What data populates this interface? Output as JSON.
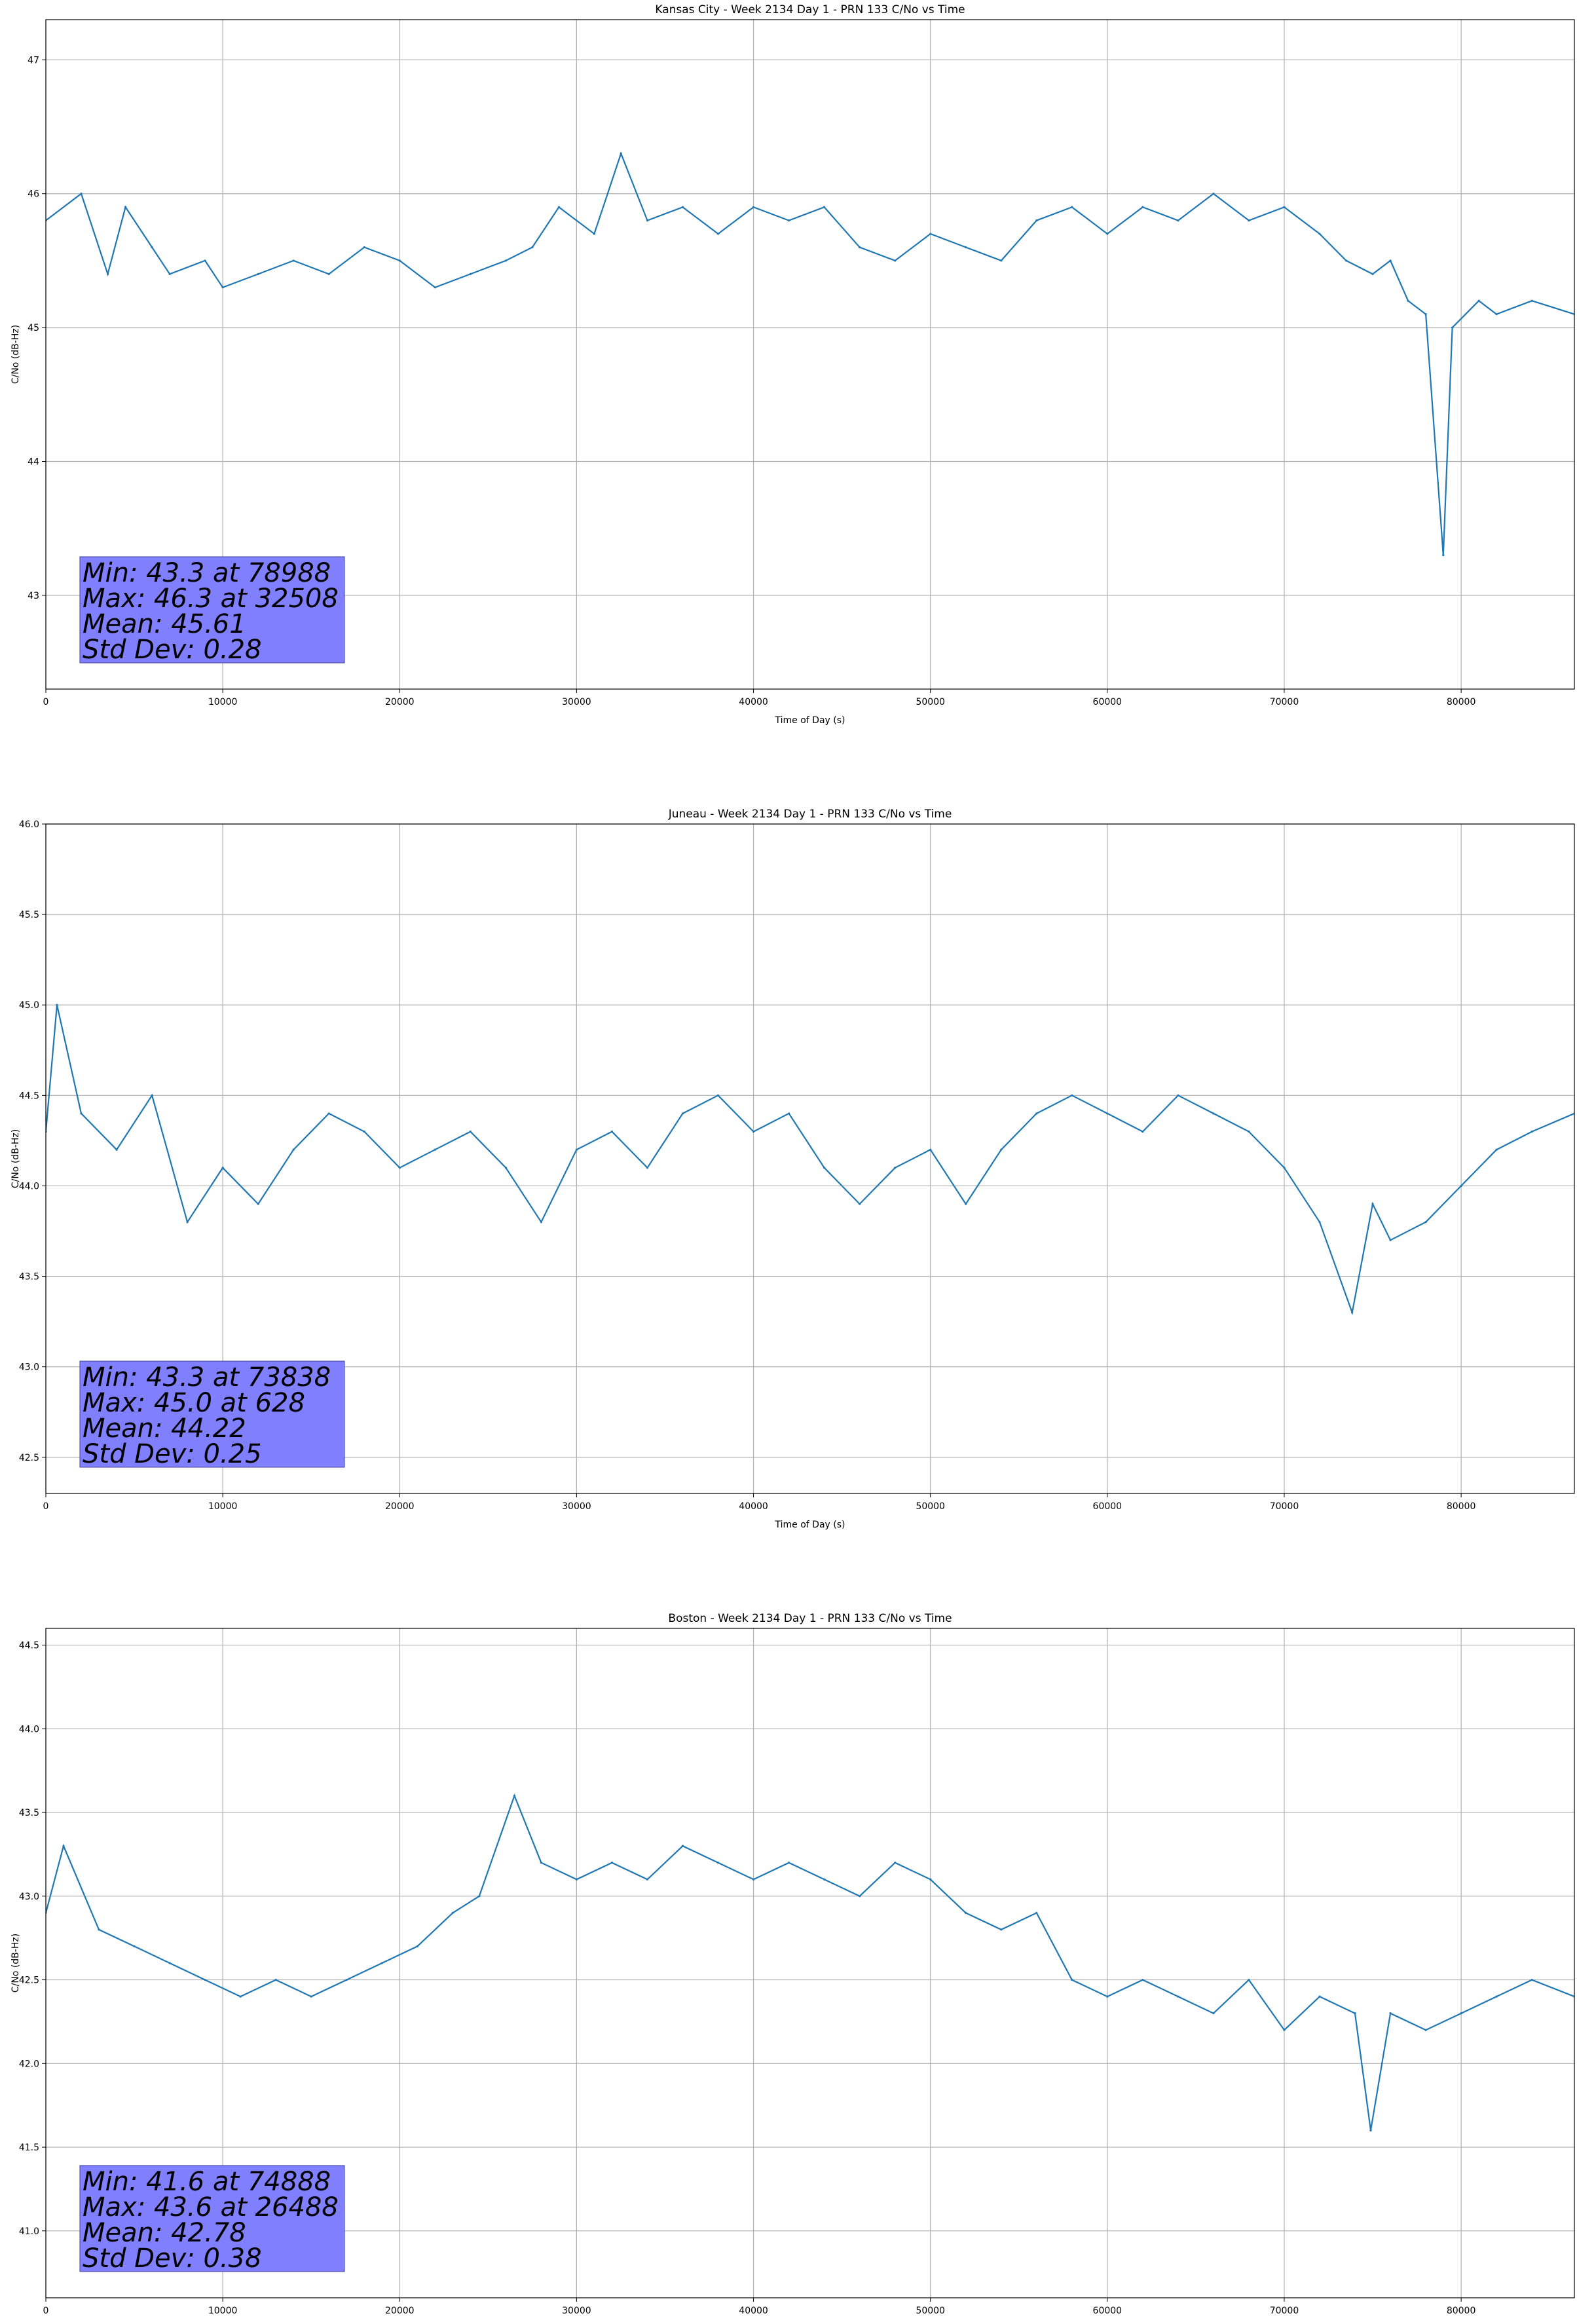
{
  "chart_data": [
    {
      "type": "line",
      "title": "Kansas City - Week 2134 Day 1 - PRN 133 C/No vs Time",
      "xlabel": "Time of Day (s)",
      "ylabel": "C/No (dB-Hz)",
      "xlim": [
        0,
        86400
      ],
      "ylim": [
        42.3,
        47.3
      ],
      "xticks": [
        "0",
        "10000",
        "20000",
        "30000",
        "40000",
        "50000",
        "60000",
        "70000",
        "80000"
      ],
      "yticks": [
        "43",
        "44",
        "45",
        "46",
        "47"
      ],
      "grid": true,
      "series": [
        {
          "color": "#1f77b4",
          "x": [
            0,
            2000,
            3500,
            4500,
            6000,
            7000,
            9000,
            10000,
            12000,
            14000,
            16000,
            18000,
            20000,
            22000,
            24000,
            26000,
            27500,
            29000,
            31000,
            32508,
            34000,
            36000,
            38000,
            40000,
            42000,
            44000,
            46000,
            48000,
            50000,
            52000,
            54000,
            56000,
            58000,
            60000,
            62000,
            64000,
            66000,
            68000,
            70000,
            72000,
            73500,
            75000,
            76000,
            77000,
            78000,
            78988,
            79500,
            81000,
            82000,
            84000,
            86400
          ],
          "y": [
            45.8,
            46.0,
            45.4,
            45.9,
            45.6,
            45.4,
            45.5,
            45.3,
            45.4,
            45.5,
            45.4,
            45.6,
            45.5,
            45.3,
            45.4,
            45.5,
            45.6,
            45.9,
            45.7,
            46.3,
            45.8,
            45.9,
            45.7,
            45.9,
            45.8,
            45.9,
            45.6,
            45.5,
            45.7,
            45.6,
            45.5,
            45.8,
            45.9,
            45.7,
            45.9,
            45.8,
            46.0,
            45.8,
            45.9,
            45.7,
            45.5,
            45.4,
            45.5,
            45.2,
            45.1,
            43.3,
            45.0,
            45.2,
            45.1,
            45.2,
            45.1
          ]
        }
      ],
      "annotation": {
        "lines": [
          "Min: 43.3 at 78988",
          "Max: 46.3 at 32508",
          "Mean: 45.61",
          "Std Dev: 0.28"
        ],
        "bg_color": "#8080ff"
      }
    },
    {
      "type": "line",
      "title": "Juneau - Week 2134 Day 1 - PRN 133 C/No vs Time",
      "xlabel": "Time of Day (s)",
      "ylabel": "C/No (dB-Hz)",
      "xlim": [
        0,
        86400
      ],
      "ylim": [
        42.3,
        46.0
      ],
      "xticks": [
        "0",
        "10000",
        "20000",
        "30000",
        "40000",
        "50000",
        "60000",
        "70000",
        "80000"
      ],
      "yticks": [
        "42.5",
        "43.0",
        "43.5",
        "44.0",
        "44.5",
        "45.0",
        "45.5",
        "46.0"
      ],
      "grid": true,
      "series": [
        {
          "color": "#1f77b4",
          "x": [
            0,
            628,
            2000,
            4000,
            6000,
            8000,
            10000,
            12000,
            14000,
            16000,
            18000,
            20000,
            22000,
            24000,
            26000,
            28000,
            30000,
            32000,
            34000,
            36000,
            38000,
            40000,
            42000,
            44000,
            46000,
            48000,
            50000,
            52000,
            54000,
            56000,
            58000,
            60000,
            62000,
            64000,
            66000,
            68000,
            70000,
            72000,
            73838,
            75000,
            76000,
            78000,
            80000,
            82000,
            84000,
            86400
          ],
          "y": [
            44.3,
            45.0,
            44.4,
            44.2,
            44.5,
            43.8,
            44.1,
            43.9,
            44.2,
            44.4,
            44.3,
            44.1,
            44.2,
            44.3,
            44.1,
            43.8,
            44.2,
            44.3,
            44.1,
            44.4,
            44.5,
            44.3,
            44.4,
            44.1,
            43.9,
            44.1,
            44.2,
            43.9,
            44.2,
            44.4,
            44.5,
            44.4,
            44.3,
            44.5,
            44.4,
            44.3,
            44.1,
            43.8,
            43.3,
            43.9,
            43.7,
            43.8,
            44.0,
            44.2,
            44.3,
            44.4
          ]
        }
      ],
      "annotation": {
        "lines": [
          "Min: 43.3 at 73838",
          "Max: 45.0 at 628",
          "Mean: 44.22",
          "Std Dev: 0.25"
        ],
        "bg_color": "#8080ff"
      }
    },
    {
      "type": "line",
      "title": "Boston - Week 2134 Day 1 - PRN 133 C/No vs Time",
      "xlabel": "Time of Day (s)",
      "ylabel": "C/No (dB-Hz)",
      "xlim": [
        0,
        86400
      ],
      "ylim": [
        40.6,
        44.6
      ],
      "xticks": [
        "0",
        "10000",
        "20000",
        "30000",
        "40000",
        "50000",
        "60000",
        "70000",
        "80000"
      ],
      "yticks": [
        "41.0",
        "41.5",
        "42.0",
        "42.5",
        "43.0",
        "43.5",
        "44.0",
        "44.5"
      ],
      "grid": true,
      "series": [
        {
          "color": "#1f77b4",
          "x": [
            0,
            1000,
            3000,
            5000,
            7000,
            9000,
            11000,
            13000,
            15000,
            17000,
            19000,
            21000,
            23000,
            24500,
            26488,
            28000,
            30000,
            32000,
            34000,
            36000,
            38000,
            40000,
            42000,
            44000,
            46000,
            48000,
            50000,
            52000,
            54000,
            56000,
            58000,
            60000,
            62000,
            64000,
            66000,
            68000,
            70000,
            72000,
            74000,
            74888,
            76000,
            78000,
            80000,
            82000,
            84000,
            86400
          ],
          "y": [
            42.9,
            43.3,
            42.8,
            42.7,
            42.6,
            42.5,
            42.4,
            42.5,
            42.4,
            42.5,
            42.6,
            42.7,
            42.9,
            43.0,
            43.6,
            43.2,
            43.1,
            43.2,
            43.1,
            43.3,
            43.2,
            43.1,
            43.2,
            43.1,
            43.0,
            43.2,
            43.1,
            42.9,
            42.8,
            42.9,
            42.5,
            42.4,
            42.5,
            42.4,
            42.3,
            42.5,
            42.2,
            42.4,
            42.3,
            41.6,
            42.3,
            42.2,
            42.3,
            42.4,
            42.5,
            42.4
          ]
        }
      ],
      "annotation": {
        "lines": [
          "Min: 41.6 at 74888",
          "Max: 43.6 at 26488",
          "Mean: 42.78",
          "Std Dev: 0.38"
        ],
        "bg_color": "#8080ff"
      }
    }
  ]
}
